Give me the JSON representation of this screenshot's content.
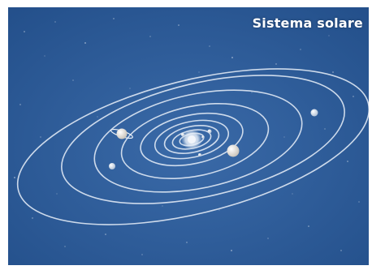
{
  "title": "Sistema solare",
  "colors": {
    "background": "#2f5f9c",
    "background_dark": "#1f4a82",
    "orbit": "#dfe8f4",
    "sun": "#f3f6fb",
    "title": "#ffffff"
  }
}
